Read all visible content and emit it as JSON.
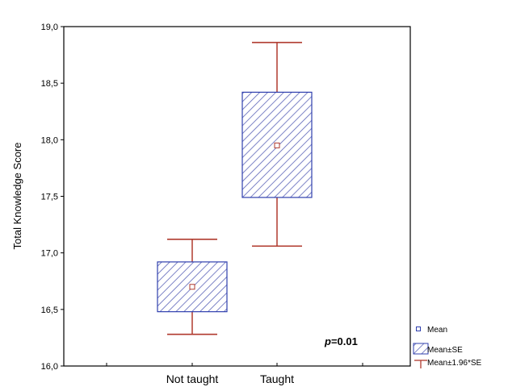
{
  "chart_data": {
    "type": "box",
    "categories": [
      "Not taught",
      "Taught"
    ],
    "ylabel": "Total Knowledge Score",
    "ylim": [
      16.0,
      19.0
    ],
    "ytick_labels": [
      "16,0",
      "16,5",
      "17,0",
      "17,5",
      "18,0",
      "18,5",
      "19,0"
    ],
    "ytick_values": [
      16.0,
      16.5,
      17.0,
      17.5,
      18.0,
      18.5,
      19.0
    ],
    "grid": false,
    "legend_position": "bottom-right",
    "legend": [
      "Mean",
      "Mean±SE",
      "Mean±1.96*SE"
    ],
    "annotation": {
      "prefix": "p",
      "text": "=0.01"
    },
    "series": [
      {
        "category": "Not taught",
        "mean": 16.7,
        "se_low": 16.48,
        "se_high": 16.92,
        "ci_low": 16.28,
        "ci_high": 17.12
      },
      {
        "category": "Taught",
        "mean": 17.95,
        "se_low": 17.49,
        "se_high": 18.42,
        "ci_low": 17.06,
        "ci_high": 18.86
      }
    ],
    "colors": {
      "whisker": "#b03a2e",
      "box_edge": "#2f3fae",
      "hatch": "#5b64b8",
      "axis": "#000000"
    }
  }
}
